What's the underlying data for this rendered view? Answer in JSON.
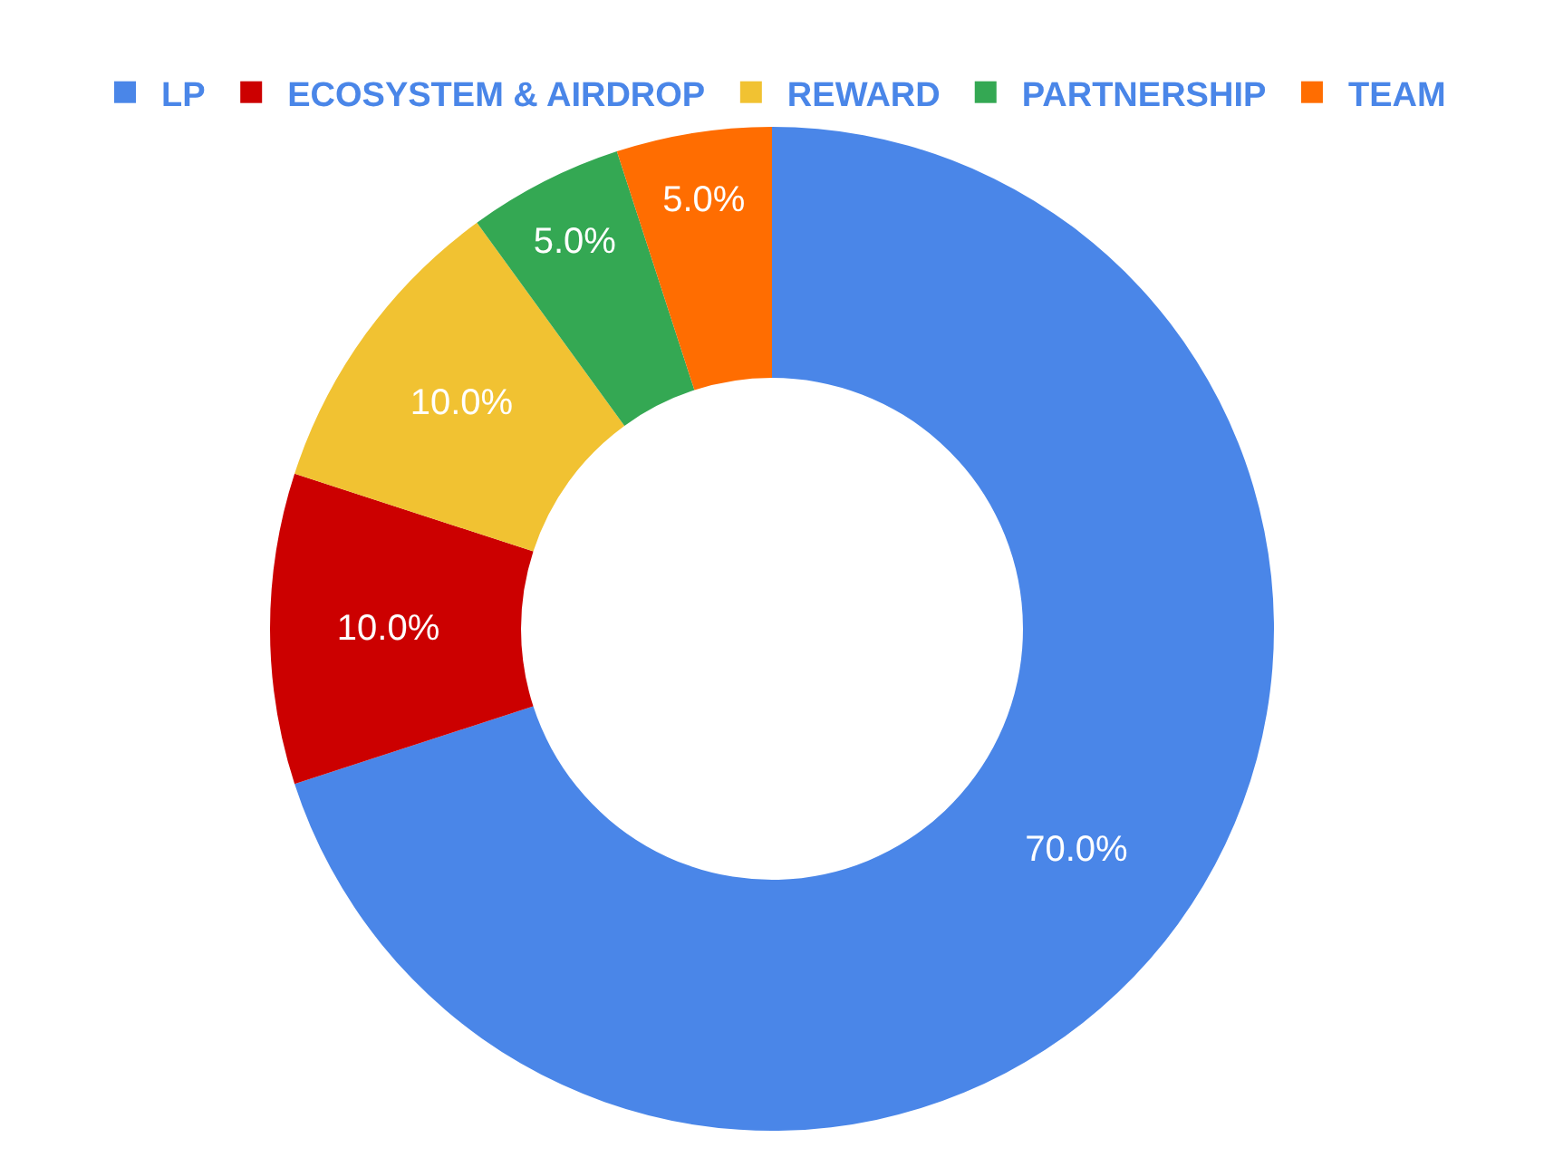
{
  "chart_data": {
    "type": "donut",
    "categories": [
      "LP",
      "ECOSYSTEM & AIRDROP",
      "REWARD",
      "PARTNERSHIP",
      "TEAM"
    ],
    "values": [
      70,
      10,
      10,
      5,
      5
    ],
    "colors": [
      "#4a86e8",
      "#cc0000",
      "#f1c232",
      "#34a853",
      "#ff6d01"
    ],
    "value_labels": [
      "70.0%",
      "10.0%",
      "10.0%",
      "5.0%",
      "5.0%"
    ],
    "legend": "top"
  }
}
